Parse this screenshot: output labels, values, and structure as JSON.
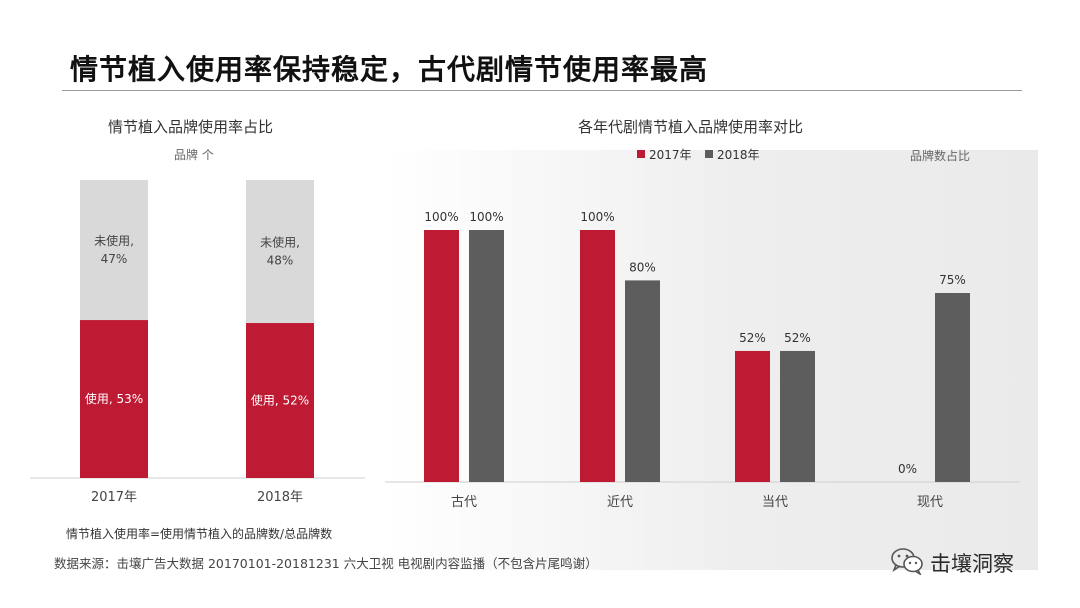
{
  "header": {
    "title": "情节植入使用率保持稳定，古代剧情节使用率最高"
  },
  "colors": {
    "red": "#be1a34",
    "dark": "#5d5d5d",
    "light": "#d9d9d9"
  },
  "left_panel": {
    "title": "情节植入品牌使用率占比",
    "unit_label": "品牌 个"
  },
  "right_panel": {
    "title": "各年代剧情节植入品牌使用率对比",
    "side_label": "品牌数占比"
  },
  "chart_data": [
    {
      "type": "bar",
      "stacked": true,
      "categories": [
        "2017年",
        "2018年"
      ],
      "series": [
        {
          "name": "使用",
          "values": [
            53,
            52
          ],
          "labels": [
            "使用, 53%",
            "使用, 52%"
          ],
          "color": "#be1a34"
        },
        {
          "name": "未使用",
          "values": [
            47,
            48
          ],
          "labels": [
            "未使用,",
            "未使用,"
          ],
          "labels2": [
            "47%",
            "48%"
          ],
          "color": "#d9d9d9"
        }
      ],
      "title": "情节植入品牌使用率占比",
      "ylabel": "品牌 个",
      "ylim": [
        0,
        100
      ]
    },
    {
      "type": "bar",
      "categories": [
        "古代",
        "近代",
        "当代",
        "现代"
      ],
      "series": [
        {
          "name": "2017年",
          "values": [
            100,
            100,
            52,
            0
          ],
          "labels": [
            "100%",
            "100%",
            "52%",
            "0%"
          ],
          "color": "#be1a34"
        },
        {
          "name": "2018年",
          "values": [
            100,
            80,
            52,
            75
          ],
          "labels": [
            "100%",
            "80%",
            "52%",
            "75%"
          ],
          "color": "#5d5d5d"
        }
      ],
      "title": "各年代剧情节植入品牌使用率对比",
      "legend": "top",
      "ylim": [
        0,
        100
      ]
    }
  ],
  "footer": {
    "formula": "情节植入使用率=使用情节植入的品牌数/总品牌数",
    "source": "数据来源：击壤广告大数据 20170101-20181231 六大卫视 电视剧内容监播（不包含片尾鸣谢）",
    "brand": "击壤洞察"
  }
}
